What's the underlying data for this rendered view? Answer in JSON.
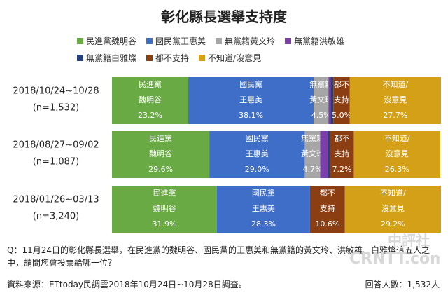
{
  "chart_data": {
    "type": "bar",
    "title": "彰化縣長選舉支持度",
    "orientation": "horizontal",
    "stacked": true,
    "legend_position": "top",
    "series_legend": [
      {
        "key": "dpp",
        "name": "民進黨魏明谷",
        "color": "#6aaa45"
      },
      {
        "key": "kmt",
        "name": "國民黨王惠美",
        "color": "#3f6ec9"
      },
      {
        "key": "ind_huang",
        "name": "無黨籍黃文玲",
        "color": "#a6a6a6"
      },
      {
        "key": "ind_hung",
        "name": "無黨籍洪敏雄",
        "color": "#7a3fa8"
      },
      {
        "key": "ind_bai",
        "name": "無黨籍白雅燦",
        "color": "#27407a"
      },
      {
        "key": "none",
        "name": "都不支持",
        "color": "#8a3e12"
      },
      {
        "key": "unknown",
        "name": "不知道/沒意見",
        "color": "#d4a017"
      }
    ],
    "categories": [
      {
        "period": "2018/10/24~10/28",
        "n": "(n=1,532)"
      },
      {
        "period": "2018/08/27~09/02",
        "n": "(n=1,087)"
      },
      {
        "period": "2018/01/26~03/13",
        "n": "(n=3,240)"
      }
    ],
    "series": [
      {
        "key": "dpp",
        "name": "民進黨魏明谷",
        "values": [
          23.2,
          29.6,
          31.9
        ],
        "labels": [
          [
            "民進黨",
            "魏明谷",
            "23.2%"
          ],
          [
            "民進黨",
            "魏明谷",
            "29.6%"
          ],
          [
            "民進黨",
            "魏明谷",
            "31.9%"
          ]
        ]
      },
      {
        "key": "kmt",
        "name": "國民黨王惠美",
        "values": [
          38.1,
          29.0,
          28.3
        ],
        "labels": [
          [
            "國民黨",
            "王惠美",
            "38.1%"
          ],
          [
            "國民黨",
            "王惠美",
            "29.0%"
          ],
          [
            "國民黨",
            "王惠美",
            "28.3%"
          ]
        ]
      },
      {
        "key": "ind_huang",
        "name": "無黨籍黃文玲",
        "values": [
          4.5,
          4.7,
          0
        ],
        "labels": [
          [
            "無黨籍",
            "黃文玲",
            "4.5%"
          ],
          [
            "無黨籍",
            "黃文玲",
            "4.7%"
          ],
          null
        ]
      },
      {
        "key": "ind_hung",
        "name": "無黨籍洪敏雄",
        "values": [
          0.7,
          2.4,
          0
        ],
        "labels": [
          null,
          null,
          null
        ]
      },
      {
        "key": "ind_bai",
        "name": "無黨籍白雅燦",
        "values": [
          0.8,
          0.6,
          0
        ],
        "labels": [
          null,
          null,
          null
        ]
      },
      {
        "key": "none",
        "name": "都不支持",
        "values": [
          5.0,
          7.2,
          10.6
        ],
        "labels": [
          [
            "都不",
            "支持",
            "5.0%"
          ],
          [
            "都不",
            "支持",
            "7.2%"
          ],
          [
            "都不",
            "支持",
            "10.6%"
          ]
        ]
      },
      {
        "key": "unknown",
        "name": "不知道/沒意見",
        "values": [
          27.7,
          26.3,
          29.2
        ],
        "labels": [
          [
            "不知道/",
            "沒意見",
            "27.7%"
          ],
          [
            "不知道/",
            "沒意見",
            "26.3%"
          ],
          [
            "不知道/",
            "沒意見",
            "29.2%"
          ]
        ]
      }
    ],
    "xlim": [
      0,
      100
    ],
    "grid": false
  },
  "question": "Q：11月24日的彰化縣長選舉，在民進黨的魏明谷、國民黨的王惠美和無黨籍的黃文玲、洪敏雄、白雅燦這五人之中，請問您會投票給哪一位？",
  "source": "資料來源：ETtoday民調雲2018年10月24日~10月28日調查。",
  "respondents": "回答人數：1,532人",
  "watermark": {
    "line1": "中評社",
    "line2": "CRNTT.com"
  }
}
